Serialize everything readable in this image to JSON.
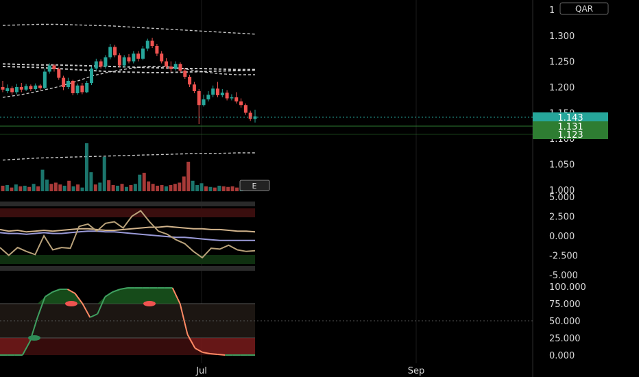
{
  "header": {
    "currency_badge": "QAR",
    "top_partial_tick": "1"
  },
  "colors": {
    "background": "#000000",
    "up": "#26a69a",
    "down": "#ef5350",
    "grid": "#2a2a2a",
    "text": "#d9d9d9",
    "label_teal": "#26a69a",
    "label_green": "#2e7d32",
    "ma_white": "#e8e8e8",
    "osc_tan": "#d2b48c",
    "osc_tan2": "#b9a27a",
    "osc_lilac": "#9a9ad8",
    "stoch_green": "#1b5e20",
    "stoch_red": "#5a1414"
  },
  "price_labels": [
    {
      "name": "last-price",
      "value": "1.143",
      "price": 1.143,
      "color": "#26a69a"
    },
    {
      "name": "level-1",
      "value": "1.131",
      "price": 1.131,
      "color": "#2e7d32"
    },
    {
      "name": "level-2",
      "value": "1.123",
      "price": 1.123,
      "color": "#2e7d32"
    }
  ],
  "earnings_badge": "E",
  "x_axis": {
    "labels": [
      "Jul",
      "Sep"
    ]
  },
  "chart_data": [
    {
      "type": "candlestick",
      "pane": "price",
      "yaxis_ticks": [
        "1.300",
        "1.250",
        "1.200",
        "1.150",
        "1.100",
        "1.050",
        "1.000"
      ],
      "ylim": [
        1.0,
        1.32
      ],
      "candles": [
        [
          1.2,
          1.195,
          1.212,
          1.19
        ],
        [
          1.192,
          1.198,
          1.205,
          1.188
        ],
        [
          1.198,
          1.19,
          1.202,
          1.185
        ],
        [
          1.19,
          1.2,
          1.206,
          1.186
        ],
        [
          1.2,
          1.195,
          1.208,
          1.19
        ],
        [
          1.195,
          1.202,
          1.206,
          1.192
        ],
        [
          1.202,
          1.196,
          1.205,
          1.192
        ],
        [
          1.196,
          1.203,
          1.207,
          1.193
        ],
        [
          1.203,
          1.198,
          1.206,
          1.194
        ],
        [
          1.198,
          1.23,
          1.236,
          1.196
        ],
        [
          1.23,
          1.242,
          1.246,
          1.226
        ],
        [
          1.242,
          1.235,
          1.245,
          1.23
        ],
        [
          1.235,
          1.218,
          1.238,
          1.214
        ],
        [
          1.218,
          1.2,
          1.222,
          1.194
        ],
        [
          1.2,
          1.212,
          1.218,
          1.196
        ],
        [
          1.212,
          1.188,
          1.214,
          1.184
        ],
        [
          1.188,
          1.203,
          1.207,
          1.185
        ],
        [
          1.203,
          1.19,
          1.208,
          1.186
        ],
        [
          1.19,
          1.208,
          1.212,
          1.188
        ],
        [
          1.208,
          1.236,
          1.24,
          1.204
        ],
        [
          1.236,
          1.25,
          1.255,
          1.232
        ],
        [
          1.25,
          1.24,
          1.254,
          1.236
        ],
        [
          1.24,
          1.258,
          1.262,
          1.236
        ],
        [
          1.258,
          1.278,
          1.284,
          1.254
        ],
        [
          1.278,
          1.262,
          1.282,
          1.258
        ],
        [
          1.262,
          1.242,
          1.266,
          1.238
        ],
        [
          1.242,
          1.258,
          1.262,
          1.238
        ],
        [
          1.258,
          1.25,
          1.264,
          1.246
        ],
        [
          1.25,
          1.265,
          1.27,
          1.246
        ],
        [
          1.265,
          1.255,
          1.27,
          1.25
        ],
        [
          1.255,
          1.275,
          1.28,
          1.252
        ],
        [
          1.275,
          1.29,
          1.294,
          1.27
        ],
        [
          1.29,
          1.28,
          1.296,
          1.276
        ],
        [
          1.28,
          1.265,
          1.284,
          1.26
        ],
        [
          1.265,
          1.25,
          1.27,
          1.246
        ],
        [
          1.25,
          1.24,
          1.256,
          1.236
        ],
        [
          1.24,
          1.235,
          1.25,
          1.23
        ],
        [
          1.235,
          1.245,
          1.25,
          1.232
        ],
        [
          1.245,
          1.232,
          1.248,
          1.228
        ],
        [
          1.232,
          1.22,
          1.236,
          1.216
        ],
        [
          1.22,
          1.205,
          1.224,
          1.2
        ],
        [
          1.205,
          1.192,
          1.21,
          1.188
        ],
        [
          1.192,
          1.165,
          1.196,
          1.128
        ],
        [
          1.165,
          1.176,
          1.185,
          1.162
        ],
        [
          1.176,
          1.185,
          1.192,
          1.172
        ],
        [
          1.185,
          1.197,
          1.203,
          1.18
        ],
        [
          1.197,
          1.184,
          1.21,
          1.18
        ],
        [
          1.184,
          1.189,
          1.196,
          1.18
        ],
        [
          1.189,
          1.178,
          1.194,
          1.174
        ],
        [
          1.178,
          1.18,
          1.186,
          1.174
        ],
        [
          1.18,
          1.172,
          1.19,
          1.168
        ],
        [
          1.172,
          1.165,
          1.178,
          1.16
        ],
        [
          1.165,
          1.15,
          1.168,
          1.146
        ],
        [
          1.15,
          1.138,
          1.154,
          1.134
        ],
        [
          1.138,
          1.143,
          1.156,
          1.131
        ]
      ],
      "moving_averages": [
        {
          "style": "dashed",
          "values": [
            1.32,
            1.321,
            1.322,
            1.322,
            1.321,
            1.32,
            1.319,
            1.317,
            1.315,
            1.313,
            1.311,
            1.309,
            1.307,
            1.305,
            1.303
          ]
        },
        {
          "style": "dashed",
          "values": [
            1.245,
            1.244,
            1.243,
            1.243,
            1.242,
            1.241,
            1.24,
            1.239,
            1.238,
            1.237,
            1.236,
            1.236,
            1.235,
            1.234,
            1.234
          ]
        },
        {
          "style": "dashed",
          "values": [
            1.24,
            1.239,
            1.238,
            1.236,
            1.234,
            1.232,
            1.23,
            1.229,
            1.228,
            1.228,
            1.229,
            1.23,
            1.231,
            1.232,
            1.233
          ]
        },
        {
          "style": "dashed",
          "values": [
            1.18,
            1.185,
            1.192,
            1.2,
            1.21,
            1.222,
            1.23,
            1.236,
            1.24,
            1.24,
            1.236,
            1.23,
            1.226,
            1.224,
            1.224
          ]
        },
        {
          "style": "dashed",
          "values": [
            1.058,
            1.06,
            1.062,
            1.063,
            1.064,
            1.065,
            1.066,
            1.067,
            1.068,
            1.069,
            1.07,
            1.071,
            1.071,
            1.072,
            1.072
          ]
        }
      ],
      "volume": [
        9,
        10,
        6,
        11,
        8,
        9,
        7,
        12,
        8,
        35,
        19,
        12,
        14,
        11,
        9,
        17,
        8,
        11,
        6,
        78,
        31,
        11,
        14,
        56,
        18,
        10,
        9,
        12,
        7,
        10,
        12,
        27,
        30,
        16,
        12,
        9,
        10,
        8,
        10,
        12,
        14,
        24,
        48,
        17,
        10,
        13,
        8,
        7,
        6,
        9,
        8,
        7,
        8,
        6,
        7
      ]
    },
    {
      "type": "line",
      "pane": "oscillator",
      "yaxis_ticks": [
        "5.000",
        "2.500",
        "0.000",
        "-2.500",
        "-5.000"
      ],
      "ylim": [
        -5.0,
        5.0
      ],
      "series": [
        {
          "color": "#d2b48c",
          "values": [
            0.8,
            0.6,
            0.7,
            0.5,
            0.6,
            0.7,
            0.6,
            0.7,
            0.8,
            0.9,
            0.9,
            0.8,
            0.7,
            0.7,
            0.8,
            0.9,
            1.0,
            1.1,
            1.1,
            1.2,
            1.1,
            1.0,
            0.9,
            0.9,
            0.8,
            0.8,
            0.7,
            0.6,
            0.6,
            0.5
          ]
        },
        {
          "color": "#9a9ad8",
          "values": [
            0.4,
            0.3,
            0.3,
            0.2,
            0.3,
            0.4,
            0.3,
            0.3,
            0.4,
            0.5,
            0.6,
            0.6,
            0.5,
            0.5,
            0.4,
            0.3,
            0.2,
            0.1,
            0.0,
            -0.1,
            -0.2,
            -0.2,
            -0.3,
            -0.4,
            -0.5,
            -0.6,
            -0.6,
            -0.6,
            -0.6,
            -0.6
          ]
        },
        {
          "color": "#b9a27a",
          "values": [
            -1.5,
            -2.5,
            -1.5,
            -2.0,
            -2.4,
            0.0,
            -1.8,
            -1.5,
            -1.6,
            1.2,
            1.5,
            0.6,
            1.6,
            1.8,
            1.0,
            2.5,
            3.2,
            1.8,
            0.6,
            0.2,
            -0.5,
            -1.0,
            -2.0,
            -2.8,
            -1.6,
            -1.7,
            -1.2,
            -1.8,
            -2.0,
            -1.9
          ]
        }
      ],
      "bands": [
        [
          2.5,
          5.0
        ],
        [
          -5.0,
          -2.5
        ]
      ]
    },
    {
      "type": "area",
      "pane": "stochastic",
      "yaxis_ticks": [
        "100.000",
        "75.000",
        "50.000",
        "25.000",
        "0.000"
      ],
      "ylim": [
        0,
        100
      ],
      "values": [
        0,
        0,
        0,
        0,
        20,
        55,
        85,
        92,
        96,
        96,
        90,
        75,
        55,
        60,
        85,
        92,
        96,
        98,
        98,
        98,
        98,
        98,
        98,
        98,
        75,
        30,
        10,
        4,
        2,
        1,
        0,
        0,
        0,
        0,
        0
      ],
      "levels": [
        75,
        50,
        25
      ],
      "markers": [
        {
          "value": 25,
          "color": "#2e8b57"
        },
        {
          "value": 75,
          "color": "#ef5350"
        },
        {
          "value": 75,
          "color": "#ef5350"
        }
      ]
    }
  ]
}
